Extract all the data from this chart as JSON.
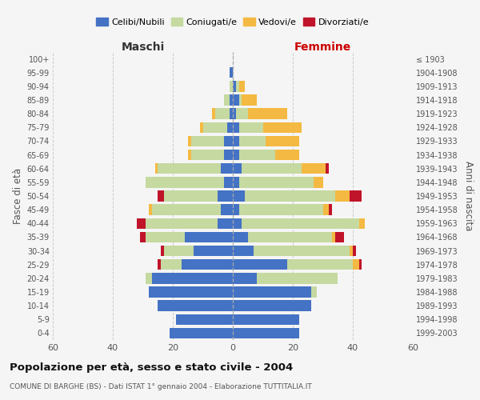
{
  "age_groups": [
    "0-4",
    "5-9",
    "10-14",
    "15-19",
    "20-24",
    "25-29",
    "30-34",
    "35-39",
    "40-44",
    "45-49",
    "50-54",
    "55-59",
    "60-64",
    "65-69",
    "70-74",
    "75-79",
    "80-84",
    "85-89",
    "90-94",
    "95-99",
    "100+"
  ],
  "birth_years": [
    "1999-2003",
    "1994-1998",
    "1989-1993",
    "1984-1988",
    "1979-1983",
    "1974-1978",
    "1969-1973",
    "1964-1968",
    "1959-1963",
    "1954-1958",
    "1949-1953",
    "1944-1948",
    "1939-1943",
    "1934-1938",
    "1929-1933",
    "1924-1928",
    "1919-1923",
    "1914-1918",
    "1909-1913",
    "1904-1908",
    "≤ 1903"
  ],
  "maschi": {
    "celibi": [
      21,
      19,
      25,
      28,
      27,
      17,
      13,
      16,
      5,
      4,
      5,
      3,
      4,
      3,
      3,
      2,
      1,
      1,
      0,
      1,
      0
    ],
    "coniugati": [
      0,
      0,
      0,
      0,
      2,
      7,
      10,
      13,
      24,
      23,
      18,
      26,
      21,
      11,
      11,
      8,
      5,
      2,
      1,
      0,
      0
    ],
    "vedovi": [
      0,
      0,
      0,
      0,
      0,
      0,
      0,
      0,
      0,
      1,
      0,
      0,
      1,
      1,
      1,
      1,
      1,
      0,
      0,
      0,
      0
    ],
    "divorziati": [
      0,
      0,
      0,
      0,
      0,
      1,
      1,
      2,
      3,
      0,
      2,
      0,
      0,
      0,
      0,
      0,
      0,
      0,
      0,
      0,
      0
    ]
  },
  "femmine": {
    "nubili": [
      22,
      22,
      26,
      26,
      8,
      18,
      7,
      5,
      3,
      2,
      4,
      2,
      3,
      2,
      2,
      2,
      1,
      2,
      1,
      0,
      0
    ],
    "coniugate": [
      0,
      0,
      0,
      2,
      27,
      22,
      32,
      28,
      39,
      28,
      30,
      25,
      20,
      12,
      9,
      8,
      4,
      1,
      1,
      0,
      0
    ],
    "vedove": [
      0,
      0,
      0,
      0,
      0,
      2,
      1,
      1,
      2,
      2,
      5,
      3,
      8,
      8,
      11,
      13,
      13,
      5,
      2,
      0,
      0
    ],
    "divorziate": [
      0,
      0,
      0,
      0,
      0,
      1,
      1,
      3,
      0,
      1,
      4,
      0,
      1,
      0,
      0,
      0,
      0,
      0,
      0,
      0,
      0
    ]
  },
  "colors": {
    "celibi_nubili": "#4472c4",
    "coniugati": "#c5d9a0",
    "vedovi": "#f4b942",
    "divorziati": "#c0142a"
  },
  "title": "Popolazione per età, sesso e stato civile - 2004",
  "subtitle": "COMUNE DI BARGHE (BS) - Dati ISTAT 1° gennaio 2004 - Elaborazione TUTTITALIA.IT",
  "ylabel_left": "Fasce di età",
  "ylabel_right": "Anni di nascita",
  "xlabel_left": "Maschi",
  "xlabel_right": "Femmine",
  "xlim": 60,
  "bg_color": "#f5f5f5",
  "grid_color": "#cccccc"
}
